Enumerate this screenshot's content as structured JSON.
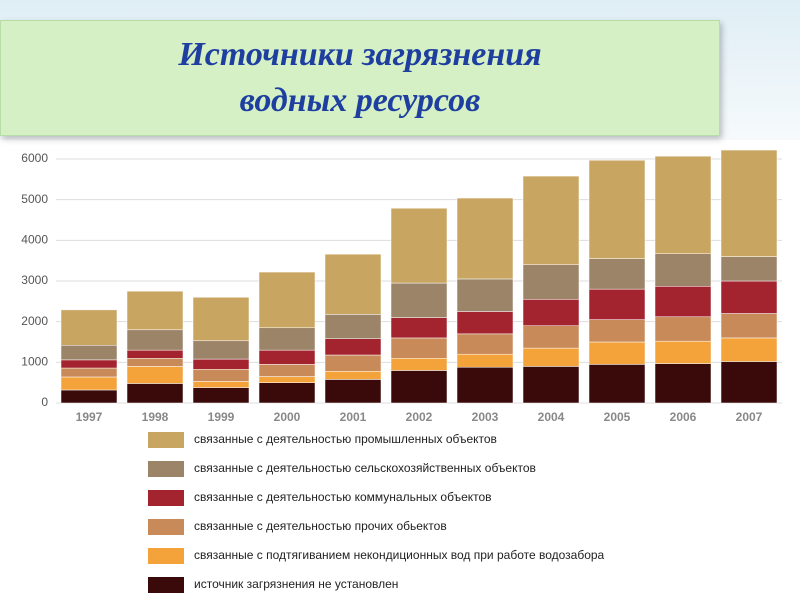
{
  "chart_data": {
    "type": "stacked_bar",
    "title": "Источники загрязнения водных ресурсов",
    "categories": [
      "1997",
      "1998",
      "1999",
      "2000",
      "2001",
      "2002",
      "2003",
      "2004",
      "2005",
      "2006",
      "2007"
    ],
    "series": [
      {
        "name": "связанные с деятельностью промышленных объектов",
        "color": "#c9a562",
        "values": [
          870,
          950,
          1070,
          1370,
          1480,
          1840,
          1990,
          2180,
          2420,
          2400,
          2620
        ]
      },
      {
        "name": "связанные с деятельностью сельскохозяйственных объектов",
        "color": "#9c8468",
        "values": [
          360,
          500,
          450,
          550,
          600,
          850,
          800,
          850,
          750,
          800,
          600
        ]
      },
      {
        "name": "связанные с деятельностью коммунальных объектов",
        "color": "#a3232e",
        "values": [
          200,
          200,
          250,
          350,
          400,
          500,
          550,
          650,
          750,
          750,
          800
        ]
      },
      {
        "name": "связанные с деятельностью прочих обьектов",
        "color": "#c98a5a",
        "values": [
          220,
          200,
          300,
          300,
          400,
          500,
          500,
          550,
          550,
          600,
          600
        ]
      },
      {
        "name": "связанные с подтягиванием некондиционных вод при работе водозабора",
        "color": "#f4a23a",
        "values": [
          320,
          420,
          150,
          150,
          200,
          300,
          320,
          450,
          550,
          550,
          580
        ]
      },
      {
        "name": "источник загрязнения не установлен",
        "color": "#3a0a0a",
        "values": [
          320,
          480,
          380,
          500,
          580,
          800,
          880,
          900,
          950,
          970,
          1020
        ]
      }
    ],
    "ylim": [
      0,
      6000
    ],
    "yticks": [
      0,
      1000,
      2000,
      3000,
      4000,
      5000,
      6000
    ],
    "grid": true
  }
}
